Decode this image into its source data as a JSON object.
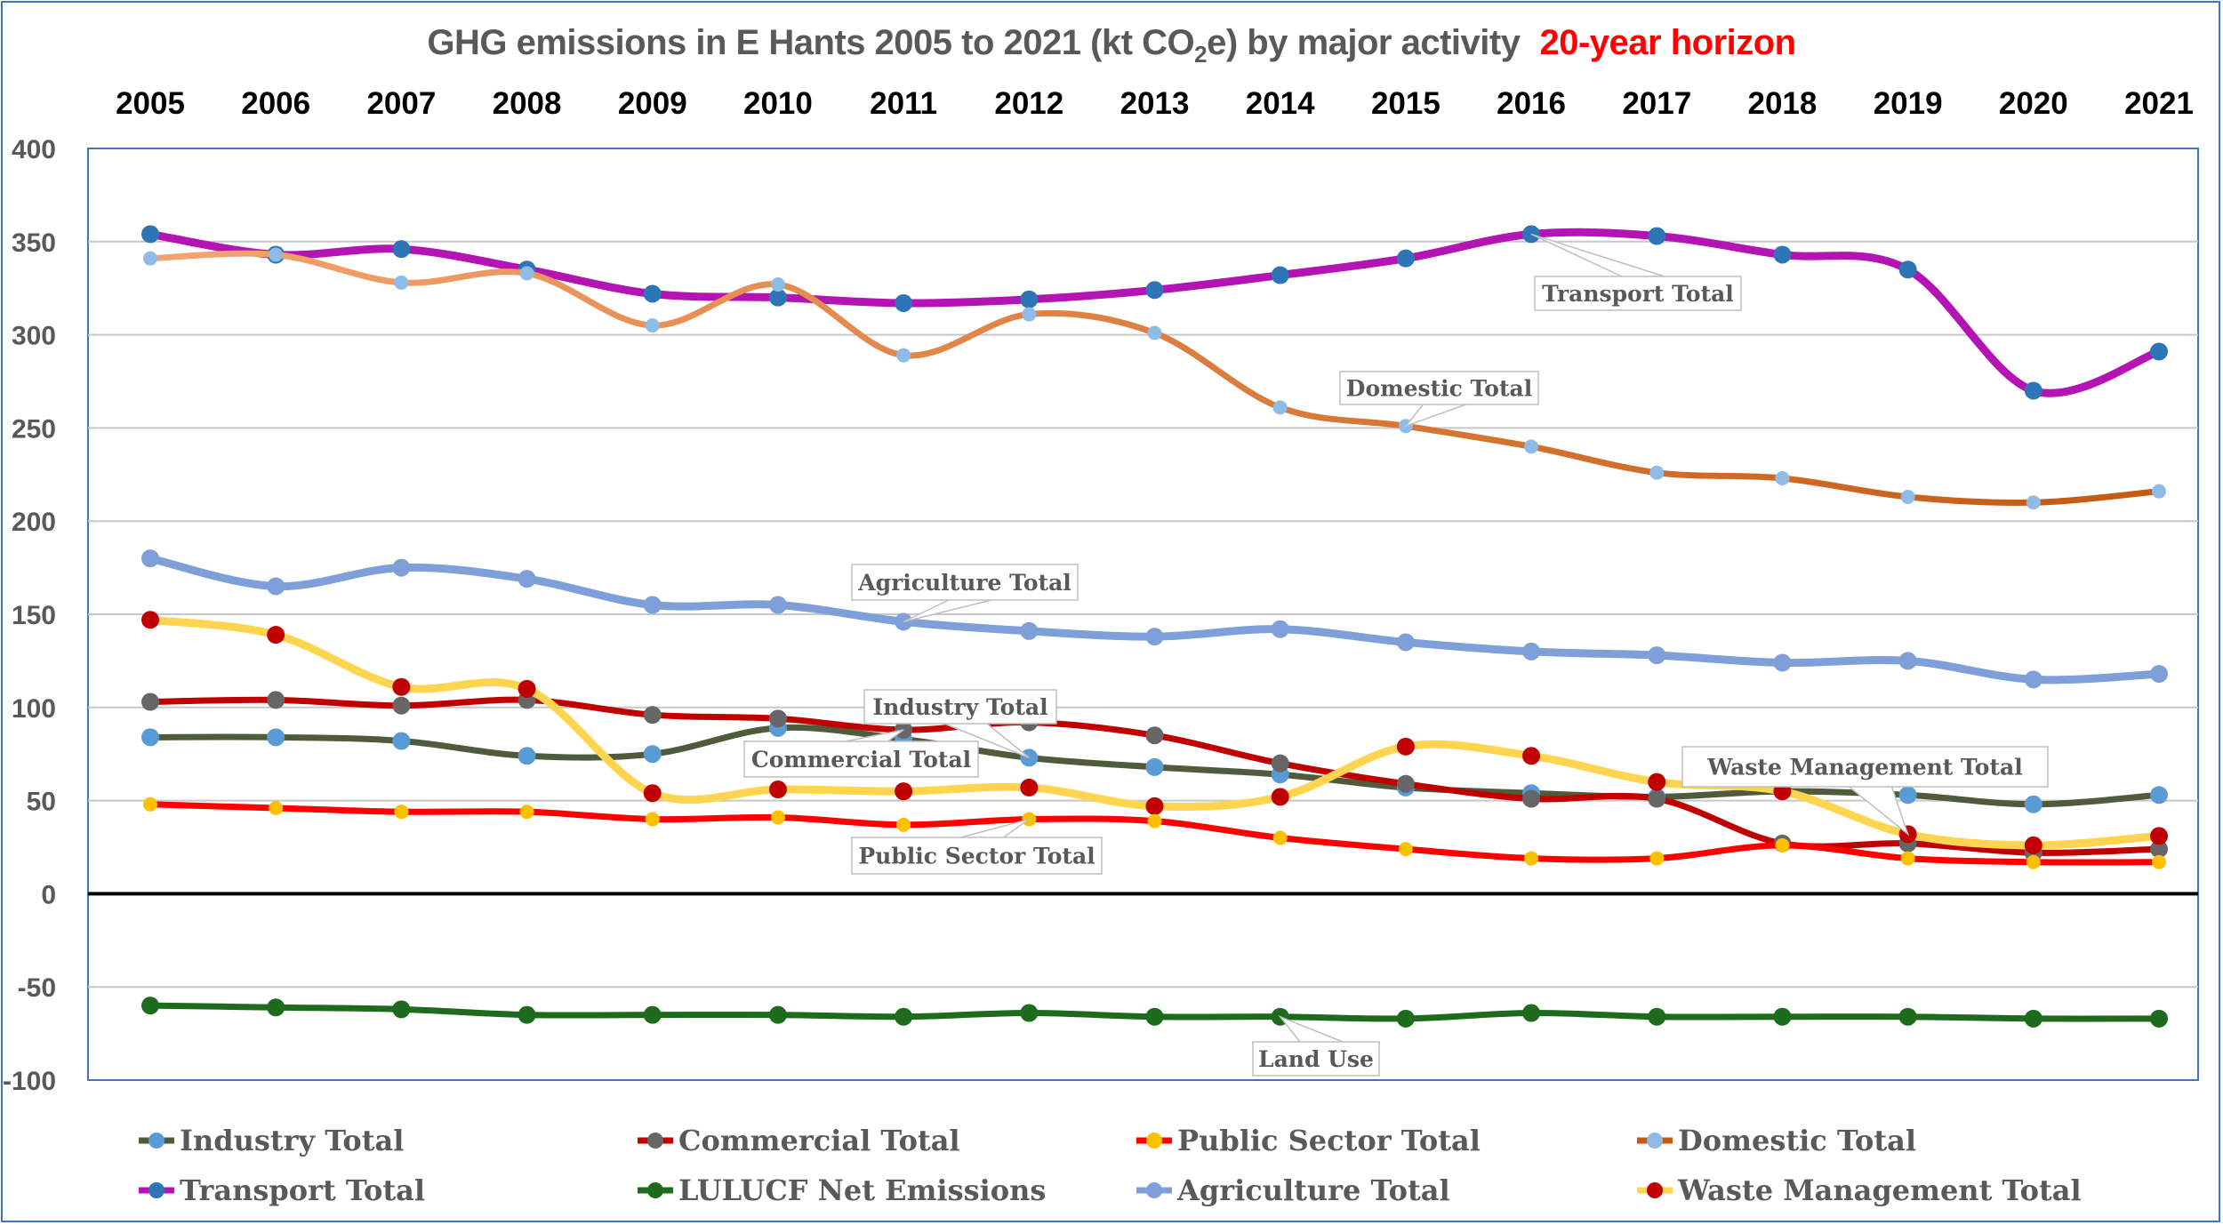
{
  "chart_data": {
    "type": "line",
    "title": "GHG emissions in E Hants 2005 to 2021 (kt CO2e) by major activity",
    "title_parts": {
      "main_before_sub": "GHG emissions in E Hants 2005 to 2021 (kt CO",
      "subscript": "2",
      "main_after_sub": "e) by major activity",
      "highlight": "20-year horizon"
    },
    "highlight_color": "#ff0000",
    "categories": [
      "2005",
      "2006",
      "2007",
      "2008",
      "2009",
      "2010",
      "2011",
      "2012",
      "2013",
      "2014",
      "2015",
      "2016",
      "2017",
      "2018",
      "2019",
      "2020",
      "2021"
    ],
    "x_axis_position": "top",
    "ylim": [
      -100,
      400
    ],
    "yticks": [
      -100,
      -50,
      0,
      50,
      100,
      150,
      200,
      250,
      300,
      350,
      400
    ],
    "grid": true,
    "smooth": true,
    "legend": "bottom",
    "series": [
      {
        "name": "Industry Total",
        "line_color": "#4f5b3a",
        "marker_color": "#5b9bd5",
        "values": [
          84,
          84,
          82,
          74,
          75,
          89,
          83,
          73,
          68,
          64,
          57,
          54,
          52,
          55,
          53,
          48,
          53
        ]
      },
      {
        "name": "Commercial Total",
        "line_color": "#c00000",
        "marker_color": "#666666",
        "values": [
          103,
          104,
          101,
          104,
          96,
          94,
          88,
          92,
          85,
          70,
          59,
          51,
          51,
          27,
          27,
          22,
          24
        ]
      },
      {
        "name": "Public Sector Total",
        "line_color": "#ff0000",
        "marker_color": "#ffc000",
        "values": [
          48,
          46,
          44,
          44,
          40,
          41,
          37,
          40,
          39,
          30,
          24,
          19,
          19,
          26,
          19,
          17,
          17
        ]
      },
      {
        "name": "Domestic Total",
        "line_color": "#f4a46f",
        "line_color_end": "#c55a11",
        "marker_color": "#8fbce6",
        "values": [
          341,
          343,
          328,
          333,
          305,
          327,
          289,
          311,
          301,
          261,
          251,
          240,
          226,
          223,
          213,
          210,
          216
        ]
      },
      {
        "name": "Transport Total",
        "line_color": "#b414b4",
        "marker_color": "#2e75b6",
        "values": [
          354,
          343,
          346,
          335,
          322,
          320,
          317,
          319,
          324,
          332,
          341,
          354,
          353,
          343,
          335,
          270,
          291
        ]
      },
      {
        "name": "LULUCF Net Emissions",
        "line_color": "#1e6b1e",
        "marker_color": "#1e6b1e",
        "values": [
          -60,
          -61,
          -62,
          -65,
          -65,
          -65,
          -66,
          -64,
          -66,
          -66,
          -67,
          -64,
          -66,
          -66,
          -66,
          -67,
          -67
        ]
      },
      {
        "name": "Agriculture Total",
        "line_color": "#7f9fd8",
        "marker_color": "#7f9fd8",
        "values": [
          180,
          165,
          175,
          169,
          155,
          155,
          146,
          141,
          138,
          142,
          135,
          130,
          128,
          124,
          125,
          115,
          118
        ]
      },
      {
        "name": "Waste Management Total",
        "line_color": "#ffd54f",
        "marker_color": "#c00000",
        "values": [
          147,
          139,
          111,
          110,
          54,
          56,
          55,
          57,
          47,
          52,
          79,
          74,
          60,
          55,
          32,
          26,
          31
        ]
      }
    ],
    "annotations": [
      {
        "text": "Transport Total",
        "series": "Transport Total",
        "year": "2016"
      },
      {
        "text": "Domestic Total",
        "series": "Domestic Total",
        "year": "2015"
      },
      {
        "text": "Agriculture Total",
        "series": "Agriculture Total",
        "year": "2011"
      },
      {
        "text": "Industry Total",
        "series": "Industry Total",
        "year": "2012"
      },
      {
        "text": "Commercial Total",
        "series": "Commercial Total",
        "year": "2011"
      },
      {
        "text": "Public Sector Total",
        "series": "Public Sector Total",
        "year": "2012"
      },
      {
        "text": "Waste Management Total",
        "series": "Waste Management Total",
        "year": "2019"
      },
      {
        "text": "Land Use",
        "series": "LULUCF Net Emissions",
        "year": "2014"
      }
    ]
  }
}
